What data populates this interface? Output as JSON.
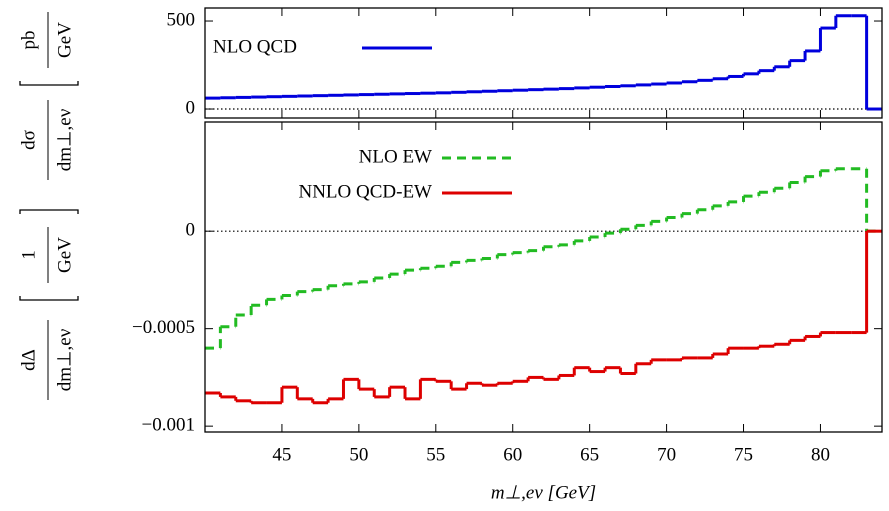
{
  "chart_data": [
    {
      "type": "histogram",
      "ylabel": {
        "numerator": "dσ",
        "denominator": "dm⊥,eν",
        "unit_numerator": "pb",
        "unit_denominator": "GeV"
      },
      "bins": [
        40,
        41,
        42,
        43,
        44,
        45,
        46,
        47,
        48,
        49,
        50,
        51,
        52,
        53,
        54,
        55,
        56,
        57,
        58,
        59,
        60,
        61,
        62,
        63,
        64,
        65,
        66,
        67,
        68,
        69,
        70,
        71,
        72,
        73,
        74,
        75,
        76,
        77,
        78,
        79,
        80,
        81,
        82,
        83,
        84
      ],
      "xlim": [
        40,
        84
      ],
      "xticks": [
        45,
        50,
        55,
        60,
        65,
        70,
        75,
        80
      ],
      "ylim": [
        -51,
        574
      ],
      "yticks": [
        0,
        500
      ],
      "zero_line": true,
      "legend": "upper left",
      "series": [
        {
          "name": "NLO QCD",
          "color": "#0000dd",
          "line_style": "solid",
          "values": [
            62,
            64,
            66,
            68,
            70,
            72,
            74,
            76,
            78,
            80,
            82,
            84,
            86,
            88,
            90,
            92,
            95,
            98,
            101,
            104,
            107,
            110,
            113,
            116,
            120,
            124,
            128,
            132,
            137,
            142,
            148,
            155,
            163,
            172,
            185,
            200,
            218,
            240,
            275,
            330,
            460,
            530,
            530,
            0
          ]
        }
      ]
    },
    {
      "type": "histogram",
      "xlabel": "m⊥,eν [GeV]",
      "ylabel": {
        "numerator": "dΔ",
        "denominator": "dm⊥,eν",
        "unit_numerator": "1",
        "unit_denominator": "GeV"
      },
      "bins": [
        40,
        41,
        42,
        43,
        44,
        45,
        46,
        47,
        48,
        49,
        50,
        51,
        52,
        53,
        54,
        55,
        56,
        57,
        58,
        59,
        60,
        61,
        62,
        63,
        64,
        65,
        66,
        67,
        68,
        69,
        70,
        71,
        72,
        73,
        74,
        75,
        76,
        77,
        78,
        79,
        80,
        81,
        82,
        83,
        84
      ],
      "xlim": [
        40,
        84
      ],
      "xticks": [
        45,
        50,
        55,
        60,
        65,
        70,
        75,
        80
      ],
      "ylim": [
        -0.00103,
        0.00056
      ],
      "yticks": [
        {
          "value": -0.001,
          "label": "−0.001"
        },
        {
          "value": -0.0005,
          "label": "−0.0005"
        },
        0
      ],
      "zero_line": true,
      "legend": "upper center",
      "series": [
        {
          "name": "NLO EW",
          "color": "#22bb22",
          "line_style": "dashed",
          "values": [
            -0.0006,
            -0.00049,
            -0.00043,
            -0.00038,
            -0.00035,
            -0.00033,
            -0.00031,
            -0.0003,
            -0.00028,
            -0.00027,
            -0.00026,
            -0.00024,
            -0.00022,
            -0.0002,
            -0.00019,
            -0.00018,
            -0.00016,
            -0.00015,
            -0.00014,
            -0.00012,
            -0.00011,
            -0.0001,
            -8e-05,
            -7e-05,
            -5e-05,
            -3e-05,
            -1e-05,
            1e-05,
            3e-05,
            5e-05,
            7e-05,
            9e-05,
            0.00011,
            0.00013,
            0.00015,
            0.00018,
            0.0002,
            0.00022,
            0.00025,
            0.00028,
            0.00031,
            0.00032,
            0.00032,
            0
          ]
        },
        {
          "name": "NNLO QCD-EW",
          "color": "#dd0000",
          "line_style": "solid",
          "values": [
            -0.00083,
            -0.00085,
            -0.00087,
            -0.00088,
            -0.00088,
            -0.0008,
            -0.00086,
            -0.00088,
            -0.00086,
            -0.00076,
            -0.00081,
            -0.00085,
            -0.0008,
            -0.00086,
            -0.00076,
            -0.00077,
            -0.00081,
            -0.00078,
            -0.00079,
            -0.00078,
            -0.00077,
            -0.00075,
            -0.00076,
            -0.00074,
            -0.0007,
            -0.00072,
            -0.0007,
            -0.00073,
            -0.00068,
            -0.00066,
            -0.00066,
            -0.00065,
            -0.00065,
            -0.00063,
            -0.0006,
            -0.0006,
            -0.00059,
            -0.00058,
            -0.00056,
            -0.00054,
            -0.00052,
            -0.00052,
            -0.00052,
            0
          ]
        }
      ]
    }
  ]
}
